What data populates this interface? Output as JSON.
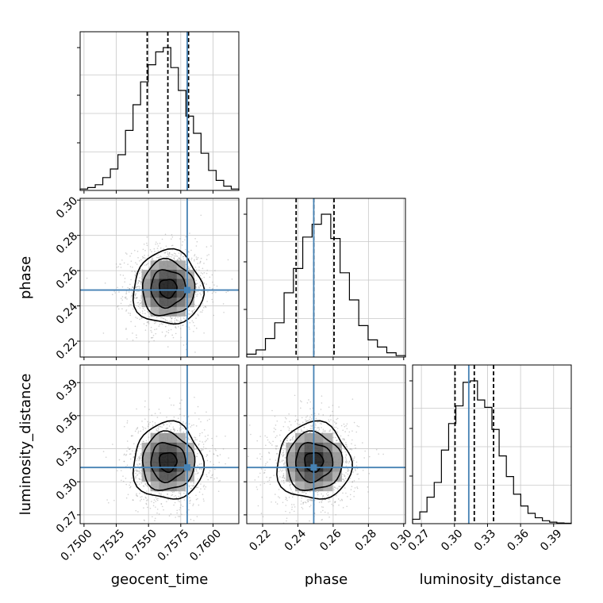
{
  "chart_data": {
    "type": "corner",
    "parameters": [
      {
        "name": "geocent_time",
        "label": "geocent_time",
        "range": [
          0.7497,
          0.762
        ],
        "ticks": [
          "0.7500",
          "0.7525",
          "0.7550",
          "0.7575",
          "0.7600"
        ],
        "tick_values": [
          0.75,
          0.7525,
          0.755,
          0.7575,
          0.76
        ],
        "truth": 0.758,
        "quantiles": [
          0.7549,
          0.7565,
          0.7581
        ]
      },
      {
        "name": "phase",
        "label": "phase",
        "range": [
          0.211,
          0.301
        ],
        "ticks": [
          "0.22",
          "0.24",
          "0.26",
          "0.28",
          "0.30"
        ],
        "tick_values": [
          0.22,
          0.24,
          0.26,
          0.28,
          0.3
        ],
        "truth": 0.249,
        "quantiles": [
          0.239,
          0.249,
          0.2605
        ]
      },
      {
        "name": "luminosity_distance",
        "label": "luminosity_distance",
        "range": [
          0.262,
          0.406
        ],
        "ticks": [
          "0.27",
          "0.30",
          "0.33",
          "0.36",
          "0.39"
        ],
        "tick_values": [
          0.27,
          0.3,
          0.33,
          0.36,
          0.39
        ],
        "truth": 0.313,
        "quantiles": [
          0.3005,
          0.318,
          0.3355
        ]
      }
    ],
    "histograms": [
      [
        1,
        2,
        4,
        9,
        15,
        25,
        42,
        60,
        76,
        88,
        97,
        100,
        86,
        70,
        52,
        40,
        26,
        14,
        7,
        3,
        1
      ],
      [
        2,
        5,
        13,
        24,
        45,
        62,
        84,
        93,
        100,
        83,
        59,
        40,
        22,
        12,
        7,
        3,
        1
      ],
      [
        3,
        8,
        18,
        28,
        50,
        68,
        80,
        96,
        97,
        84,
        79,
        64,
        46,
        32,
        20,
        12,
        7,
        4,
        2,
        1,
        0.5,
        0.3
      ]
    ],
    "pairs": [
      {
        "x": 0,
        "y": 1,
        "mean": [
          0.7565,
          0.25
        ],
        "sd": [
          0.00135,
          0.0105
        ]
      },
      {
        "x": 0,
        "y": 2,
        "mean": [
          0.7565,
          0.318
        ],
        "sd": [
          0.00135,
          0.0175
        ]
      },
      {
        "x": 1,
        "y": 2,
        "mean": [
          0.249,
          0.318
        ],
        "sd": [
          0.0105,
          0.0175
        ]
      }
    ],
    "truth_color": "#4682b4",
    "quantile_style": "dashed",
    "grid": true
  }
}
